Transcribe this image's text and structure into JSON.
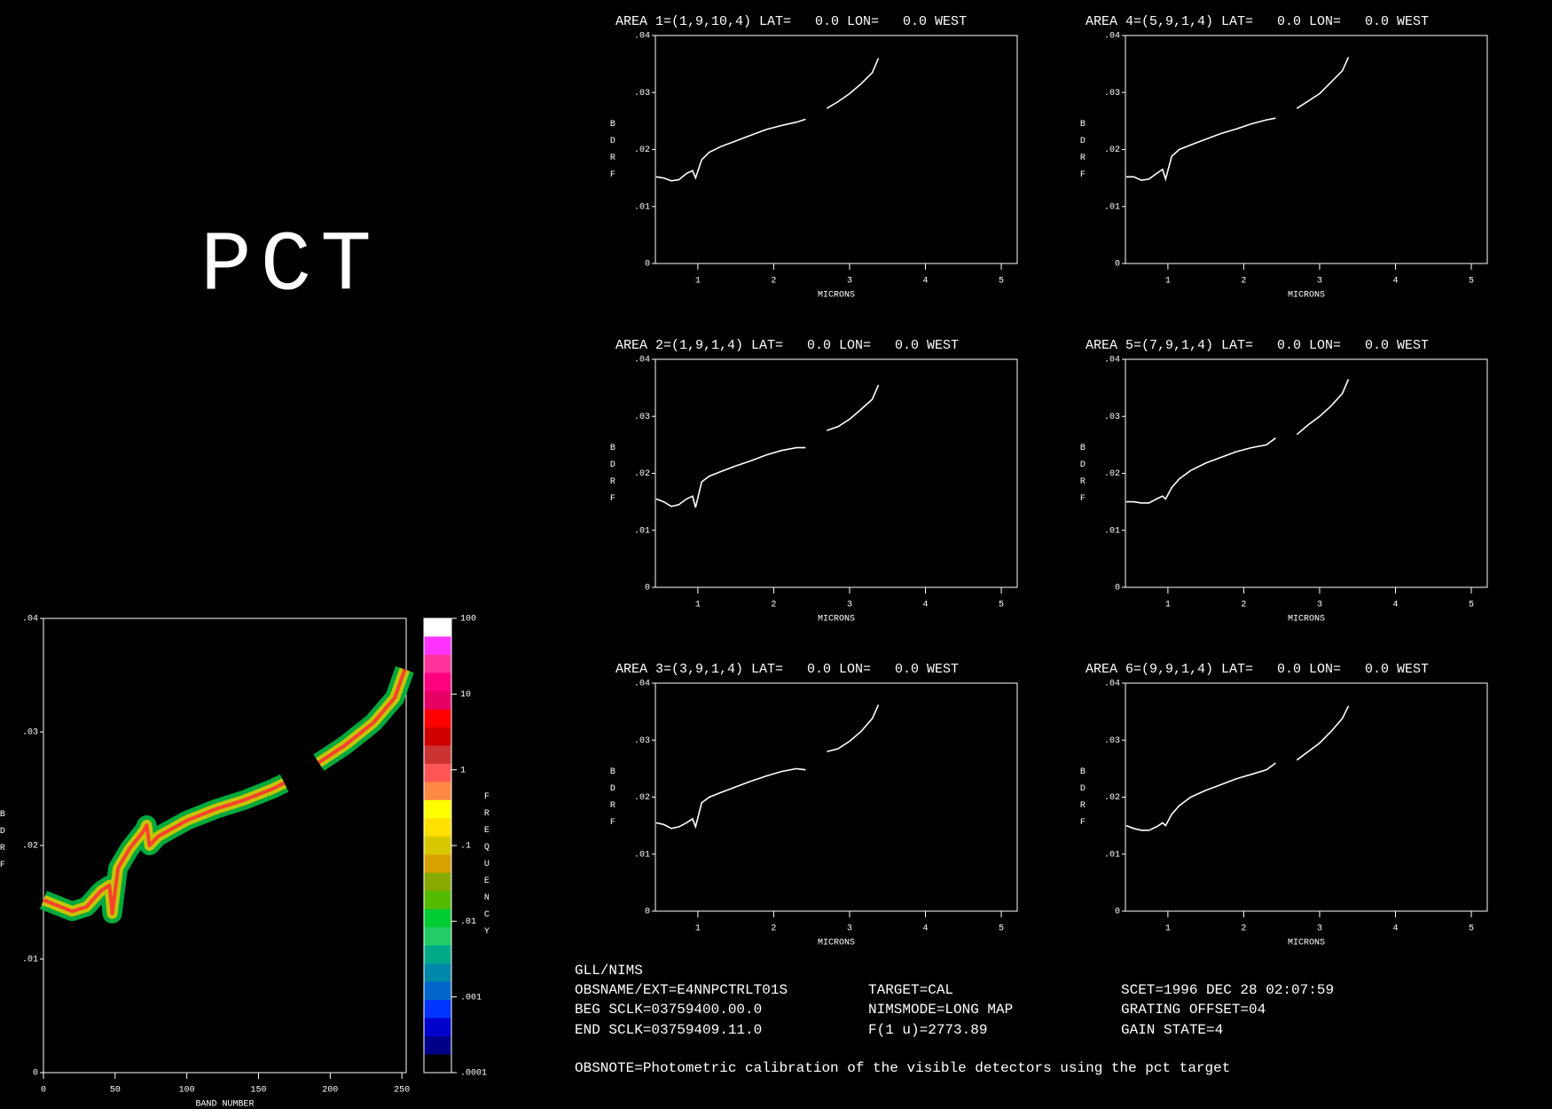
{
  "chart_data": [
    {
      "type": "density",
      "xlabel": "BAND NUMBER",
      "ylabel": "BDRF",
      "x": [
        0,
        10,
        20,
        30,
        40,
        46,
        48,
        52,
        60,
        70,
        72,
        74,
        80,
        100,
        120,
        140,
        160,
        168,
        180,
        192,
        210,
        230,
        245,
        252
      ],
      "values": [
        0.0152,
        0.0147,
        0.0142,
        0.0146,
        0.016,
        0.0165,
        0.014,
        0.018,
        0.0197,
        0.0213,
        0.0218,
        0.02,
        0.0208,
        0.0222,
        0.0232,
        0.024,
        0.025,
        0.0255,
        null,
        0.0273,
        0.0288,
        0.0308,
        0.033,
        0.0355
      ],
      "xlim": [
        0,
        253
      ],
      "ylim": [
        0,
        0.04
      ],
      "xticks": [
        0,
        50,
        100,
        150,
        200,
        250
      ],
      "yticks": [
        0,
        {
          "value": 0.01,
          "label": ".01"
        },
        {
          "value": 0.02,
          "label": ".02"
        },
        {
          "value": 0.03,
          "label": ".03"
        },
        {
          "value": 0.04,
          "label": ".04"
        }
      ],
      "colorbar": {
        "label": "FREQUENCY",
        "log": true,
        "lim": [
          0.0001,
          100
        ],
        "ticks": [
          100,
          10,
          1,
          {
            "value": 0.1,
            "label": ".1"
          },
          {
            "value": 0.01,
            "label": ".01"
          },
          {
            "value": 0.001,
            "label": ".001"
          },
          {
            "value": 0.0001,
            "label": ".0001"
          }
        ],
        "colors": [
          "#ffffff",
          "#ff33ff",
          "#ff3399",
          "#ff0080",
          "#e60066",
          "#ff0000",
          "#d00000",
          "#cc3333",
          "#ff5555",
          "#ff8844",
          "#ffff00",
          "#ffe000",
          "#d8c800",
          "#d8a000",
          "#88aa00",
          "#55bb00",
          "#00cc33",
          "#22cc66",
          "#00aa88",
          "#0088aa",
          "#0066cc",
          "#0033ff",
          "#0000cc",
          "#000088",
          "#000000"
        ]
      }
    },
    {
      "type": "line",
      "title": "AREA 1=(1,9,10,4) LAT=   0.0 LON=   0.0 WEST",
      "xlabel": "MICRONS",
      "ylabel": "BDRF",
      "color": "#ffffff",
      "x": [
        0.45,
        0.55,
        0.65,
        0.75,
        0.85,
        0.93,
        0.97,
        1.05,
        1.15,
        1.3,
        1.5,
        1.7,
        1.9,
        2.1,
        2.3,
        2.42,
        2.55,
        2.7,
        2.85,
        3.0,
        3.15,
        3.3,
        3.38
      ],
      "values": [
        0.0152,
        0.015,
        0.0145,
        0.0147,
        0.0158,
        0.0163,
        0.015,
        0.0182,
        0.0195,
        0.0205,
        0.0215,
        0.0225,
        0.0235,
        0.0242,
        0.0248,
        0.0253,
        null,
        0.0272,
        0.0284,
        0.0298,
        0.0315,
        0.0335,
        0.036
      ],
      "xlim": [
        0.44,
        5.21
      ],
      "ylim": [
        0,
        0.04
      ],
      "xticks": [
        1,
        2,
        3,
        4,
        5
      ],
      "yticks": [
        0,
        {
          "value": 0.01,
          "label": ".01"
        },
        {
          "value": 0.02,
          "label": ".02"
        },
        {
          "value": 0.03,
          "label": ".03"
        },
        {
          "value": 0.04,
          "label": ".04"
        }
      ]
    },
    {
      "type": "line",
      "title": "AREA 2=(1,9,1,4) LAT=   0.0 LON=   0.0 WEST",
      "xlabel": "MICRONS",
      "ylabel": "BDRF",
      "color": "#ffffff",
      "x": [
        0.45,
        0.55,
        0.65,
        0.75,
        0.85,
        0.93,
        0.97,
        1.05,
        1.15,
        1.3,
        1.5,
        1.7,
        1.9,
        2.1,
        2.3,
        2.42,
        2.55,
        2.7,
        2.85,
        3.0,
        3.15,
        3.3,
        3.38
      ],
      "values": [
        0.0155,
        0.015,
        0.0142,
        0.0145,
        0.0155,
        0.016,
        0.014,
        0.0185,
        0.0195,
        0.0203,
        0.0213,
        0.0222,
        0.0232,
        0.024,
        0.0245,
        0.0245,
        null,
        0.0275,
        0.0282,
        0.0295,
        0.0312,
        0.033,
        0.0355
      ],
      "xlim": [
        0.44,
        5.21
      ],
      "ylim": [
        0,
        0.04
      ],
      "xticks": [
        1,
        2,
        3,
        4,
        5
      ],
      "yticks": [
        0,
        {
          "value": 0.01,
          "label": ".01"
        },
        {
          "value": 0.02,
          "label": ".02"
        },
        {
          "value": 0.03,
          "label": ".03"
        },
        {
          "value": 0.04,
          "label": ".04"
        }
      ]
    },
    {
      "type": "line",
      "title": "AREA 3=(3,9,1,4) LAT=   0.0 LON=   0.0 WEST",
      "xlabel": "MICRONS",
      "ylabel": "BDRF",
      "color": "#ffffff",
      "x": [
        0.45,
        0.55,
        0.65,
        0.75,
        0.85,
        0.93,
        0.97,
        1.05,
        1.15,
        1.3,
        1.5,
        1.7,
        1.9,
        2.1,
        2.3,
        2.42,
        2.55,
        2.7,
        2.85,
        3.0,
        3.15,
        3.3,
        3.38
      ],
      "values": [
        0.0155,
        0.0152,
        0.0145,
        0.0148,
        0.0155,
        0.0162,
        0.0148,
        0.019,
        0.02,
        0.0208,
        0.0218,
        0.0228,
        0.0237,
        0.0245,
        0.025,
        0.0248,
        null,
        0.028,
        0.0285,
        0.0298,
        0.0315,
        0.0338,
        0.0362
      ],
      "xlim": [
        0.44,
        5.21
      ],
      "ylim": [
        0,
        0.04
      ],
      "xticks": [
        1,
        2,
        3,
        4,
        5
      ],
      "yticks": [
        0,
        {
          "value": 0.01,
          "label": ".01"
        },
        {
          "value": 0.02,
          "label": ".02"
        },
        {
          "value": 0.03,
          "label": ".03"
        },
        {
          "value": 0.04,
          "label": ".04"
        }
      ]
    },
    {
      "type": "line",
      "title": "AREA 4=(5,9,1,4) LAT=   0.0 LON=   0.0 WEST",
      "xlabel": "MICRONS",
      "ylabel": "BDRF",
      "color": "#ffffff",
      "x": [
        0.45,
        0.55,
        0.65,
        0.75,
        0.85,
        0.93,
        0.97,
        1.05,
        1.15,
        1.3,
        1.5,
        1.7,
        1.9,
        2.1,
        2.3,
        2.42,
        2.55,
        2.7,
        2.85,
        3.0,
        3.15,
        3.3,
        3.38
      ],
      "values": [
        0.0152,
        0.0152,
        0.0146,
        0.0148,
        0.0158,
        0.0165,
        0.0148,
        0.0188,
        0.02,
        0.0208,
        0.0218,
        0.0228,
        0.0236,
        0.0245,
        0.0252,
        0.0255,
        null,
        0.0272,
        0.0285,
        0.0298,
        0.0318,
        0.0338,
        0.0362
      ],
      "xlim": [
        0.44,
        5.21
      ],
      "ylim": [
        0,
        0.04
      ],
      "xticks": [
        1,
        2,
        3,
        4,
        5
      ],
      "yticks": [
        0,
        {
          "value": 0.01,
          "label": ".01"
        },
        {
          "value": 0.02,
          "label": ".02"
        },
        {
          "value": 0.03,
          "label": ".03"
        },
        {
          "value": 0.04,
          "label": ".04"
        }
      ]
    },
    {
      "type": "line",
      "title": "AREA 5=(7,9,1,4) LAT=   0.0 LON=   0.0 WEST",
      "xlabel": "MICRONS",
      "ylabel": "BDRF",
      "color": "#ffffff",
      "x": [
        0.45,
        0.55,
        0.65,
        0.75,
        0.85,
        0.93,
        0.97,
        1.05,
        1.15,
        1.3,
        1.5,
        1.7,
        1.9,
        2.1,
        2.3,
        2.42,
        2.55,
        2.7,
        2.85,
        3.0,
        3.15,
        3.3,
        3.38
      ],
      "values": [
        0.015,
        0.015,
        0.0148,
        0.0148,
        0.0155,
        0.016,
        0.0155,
        0.0175,
        0.019,
        0.0205,
        0.0218,
        0.0228,
        0.0238,
        0.0245,
        0.025,
        0.0262,
        null,
        0.0268,
        0.0285,
        0.03,
        0.0318,
        0.034,
        0.0365
      ],
      "xlim": [
        0.44,
        5.21
      ],
      "ylim": [
        0,
        0.04
      ],
      "xticks": [
        1,
        2,
        3,
        4,
        5
      ],
      "yticks": [
        0,
        {
          "value": 0.01,
          "label": ".01"
        },
        {
          "value": 0.02,
          "label": ".02"
        },
        {
          "value": 0.03,
          "label": ".03"
        },
        {
          "value": 0.04,
          "label": ".04"
        }
      ]
    },
    {
      "type": "line",
      "title": "AREA 6=(9,9,1,4) LAT=   0.0 LON=   0.0 WEST",
      "xlabel": "MICRONS",
      "ylabel": "BDRF",
      "color": "#ffffff",
      "x": [
        0.45,
        0.55,
        0.65,
        0.75,
        0.85,
        0.93,
        0.97,
        1.05,
        1.15,
        1.3,
        1.5,
        1.7,
        1.9,
        2.1,
        2.3,
        2.42,
        2.55,
        2.7,
        2.85,
        3.0,
        3.15,
        3.3,
        3.38
      ],
      "values": [
        0.015,
        0.0145,
        0.0142,
        0.0142,
        0.0148,
        0.0155,
        0.015,
        0.017,
        0.0185,
        0.02,
        0.0212,
        0.0222,
        0.0232,
        0.024,
        0.0248,
        0.026,
        null,
        0.0265,
        0.028,
        0.0295,
        0.0315,
        0.0338,
        0.036
      ],
      "xlim": [
        0.44,
        5.21
      ],
      "ylim": [
        0,
        0.04
      ],
      "xticks": [
        1,
        2,
        3,
        4,
        5
      ],
      "yticks": [
        0,
        {
          "value": 0.01,
          "label": ".01"
        },
        {
          "value": 0.02,
          "label": ".02"
        },
        {
          "value": 0.03,
          "label": ".03"
        },
        {
          "value": 0.04,
          "label": ".04"
        }
      ]
    }
  ],
  "label": "PCT",
  "info": {
    "header": "GLL/NIMS",
    "rows": [
      [
        "OBSNAME/EXT=E4NNPCTRLT01S",
        "TARGET=CAL",
        "SCET=1996 DEC 28 02:07:59"
      ],
      [
        "BEG SCLK=03759400.00.0",
        "NIMSMODE=LONG MAP",
        "GRATING OFFSET=04"
      ],
      [
        "END SCLK=03759409.11.0",
        "F(1 u)=2773.89",
        "GAIN STATE=4"
      ]
    ],
    "note": "OBSNOTE=Photometric calibration of the visible detectors using the pct target"
  }
}
